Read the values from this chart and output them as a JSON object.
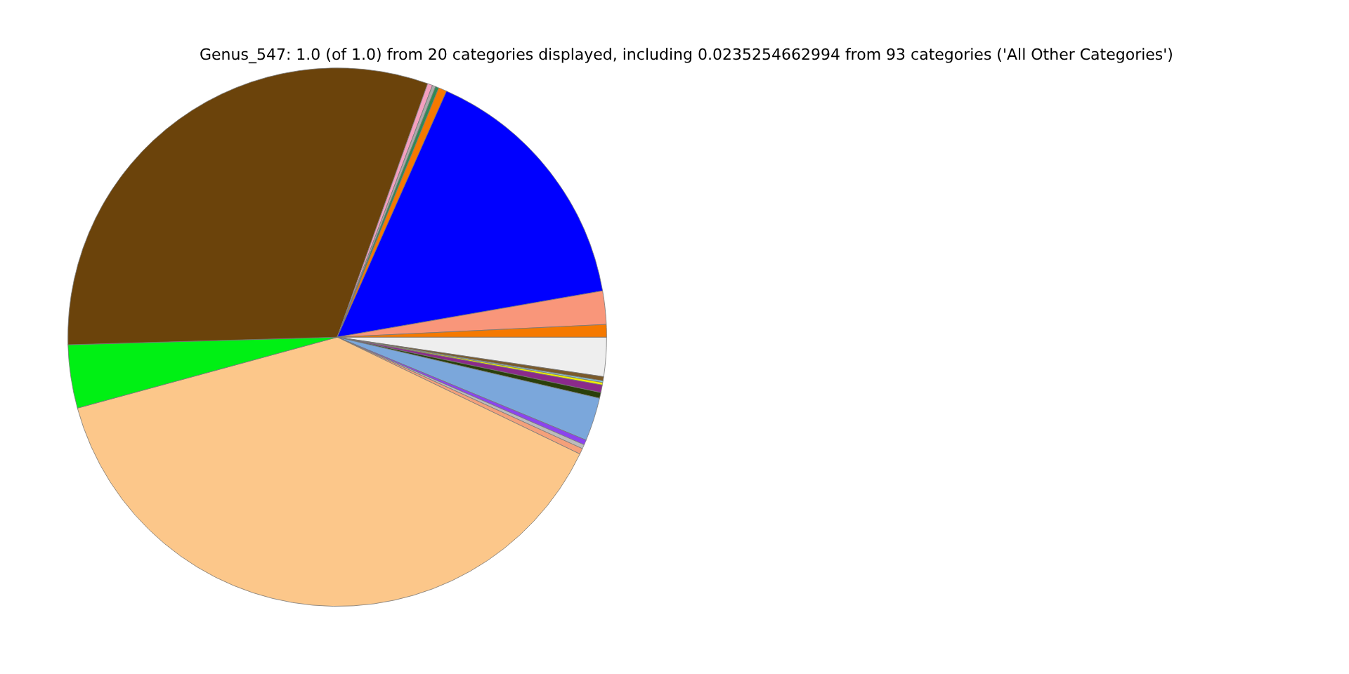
{
  "chart_data": {
    "type": "pie",
    "title": "Genus_547: 1.0 (of 1.0) from 20 categories displayed, including 0.0235254662994 from 93 categories ('All Other Categories')",
    "categories": [
      null,
      null,
      null,
      null,
      null,
      null,
      null,
      null,
      null,
      null,
      null,
      null,
      null,
      null,
      null,
      null,
      null,
      null,
      null,
      null
    ],
    "values": [
      0.75,
      2.0,
      15.6,
      0.5,
      0.2,
      0.2,
      0.3,
      30.9,
      3.8,
      38.6,
      0.35,
      0.25,
      0.3,
      2.6,
      0.35,
      0.45,
      0.15,
      0.1,
      0.25,
      2.35
    ],
    "colors": [
      "#f57900",
      "#f9967a",
      "#0000ff",
      "#f57900",
      "#2e8b57",
      "#aaaaaa",
      "#f4a0c0",
      "#6b430b",
      "#00f014",
      "#fcc78a",
      "#f4a07a",
      "#bbbbbb",
      "#8b44ee",
      "#7ba7db",
      "#2a3f0a",
      "#8b2a8b",
      "#f0f000",
      "#88ccdd",
      "#7a5a2a",
      "#eeeeee"
    ],
    "legend": false
  }
}
